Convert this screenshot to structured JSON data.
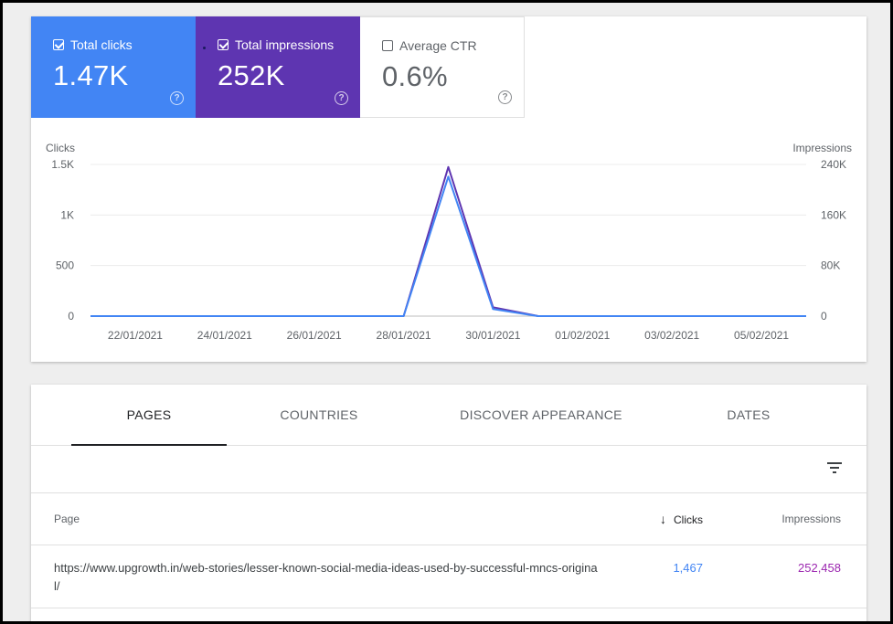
{
  "metrics": [
    {
      "label": "Total clicks",
      "value": "1.47K",
      "checked": true
    },
    {
      "label": "Total impressions",
      "value": "252K",
      "checked": true
    },
    {
      "label": "Average CTR",
      "value": "0.6%",
      "checked": false
    }
  ],
  "help_glyph": "?",
  "colors": {
    "clicks": "#4285f4",
    "impressions": "#5e35b1",
    "impressions_line": "#5e35b1"
  },
  "chart_data": {
    "type": "line",
    "x": [
      "21/01/2021",
      "22/01/2021",
      "23/01/2021",
      "24/01/2021",
      "25/01/2021",
      "26/01/2021",
      "27/01/2021",
      "28/01/2021",
      "29/01/2021",
      "30/01/2021",
      "31/01/2021",
      "01/02/2021",
      "02/02/2021",
      "03/02/2021",
      "04/02/2021",
      "05/02/2021",
      "06/02/2021"
    ],
    "tick_labels": [
      "22/01/2021",
      "24/01/2021",
      "26/01/2021",
      "28/01/2021",
      "30/01/2021",
      "01/02/2021",
      "03/02/2021",
      "05/02/2021"
    ],
    "y_left_label": "Clicks",
    "y_right_label": "Impressions",
    "y_left_ticks": [
      "0",
      "500",
      "1K",
      "1.5K"
    ],
    "y_right_ticks": [
      "0",
      "80K",
      "160K",
      "240K"
    ],
    "y_left_lim": [
      0,
      1500
    ],
    "y_right_lim": [
      0,
      240000
    ],
    "series": [
      {
        "name": "Clicks",
        "axis": "left",
        "values": [
          0,
          0,
          0,
          0,
          0,
          0,
          0,
          0,
          1380,
          70,
          0,
          0,
          0,
          0,
          0,
          0,
          0
        ]
      },
      {
        "name": "Impressions",
        "axis": "right",
        "values": [
          0,
          0,
          0,
          0,
          0,
          0,
          0,
          0,
          236000,
          14000,
          200,
          0,
          0,
          0,
          0,
          0,
          0
        ]
      }
    ],
    "grid": true
  },
  "tabs": [
    "PAGES",
    "COUNTRIES",
    "DISCOVER APPEARANCE",
    "DATES"
  ],
  "table": {
    "headers": {
      "page": "Page",
      "clicks": "Clicks",
      "impressions": "Impressions"
    },
    "sort_arrow": "↓",
    "rows": [
      {
        "page": "https://www.upgrowth.in/web-stories/lesser-known-social-media-ideas-used-by-successful-mncs-original/",
        "clicks": "1,467",
        "impressions": "252,458"
      }
    ]
  }
}
